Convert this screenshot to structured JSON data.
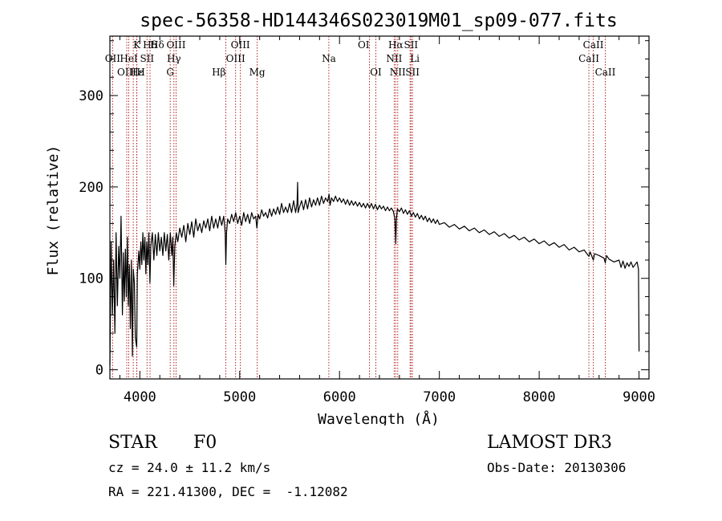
{
  "chart_data": {
    "type": "line",
    "title": "spec-56358-HD144346S023019M01_sp09-077.fits",
    "xlabel": "Wavelength (Å)",
    "ylabel": "Flux (relative)",
    "xlim": [
      3700,
      9100
    ],
    "ylim": [
      -10,
      365
    ],
    "xticks": [
      4000,
      5000,
      6000,
      7000,
      8000,
      9000
    ],
    "xtick_labels": [
      "4000",
      "5000",
      "6000",
      "7000",
      "8000",
      "9000"
    ],
    "yticks": [
      0,
      100,
      200,
      300
    ],
    "ytick_labels": [
      "0",
      "100",
      "200",
      "300"
    ],
    "x_minor_step": 200,
    "y_minor_step": 20,
    "line_color": "#000000",
    "marker_color": "#b22222",
    "series": [
      {
        "name": "spectrum",
        "points": [
          [
            3700,
            5
          ],
          [
            3712,
            140
          ],
          [
            3725,
            60
          ],
          [
            3738,
            120
          ],
          [
            3750,
            40
          ],
          [
            3762,
            150
          ],
          [
            3775,
            70
          ],
          [
            3788,
            135
          ],
          [
            3800,
            100
          ],
          [
            3812,
            168
          ],
          [
            3825,
            60
          ],
          [
            3835,
            128
          ],
          [
            3845,
            75
          ],
          [
            3855,
            132
          ],
          [
            3865,
            80
          ],
          [
            3875,
            145
          ],
          [
            3885,
            70
          ],
          [
            3895,
            115
          ],
          [
            3905,
            45
          ],
          [
            3915,
            120
          ],
          [
            3925,
            15
          ],
          [
            3935,
            110
          ],
          [
            3945,
            95
          ],
          [
            3955,
            35
          ],
          [
            3968,
            25
          ],
          [
            3975,
            105
          ],
          [
            3990,
            130
          ],
          [
            4000,
            110
          ],
          [
            4010,
            140
          ],
          [
            4020,
            115
          ],
          [
            4030,
            150
          ],
          [
            4040,
            120
          ],
          [
            4050,
            145
          ],
          [
            4060,
            105
          ],
          [
            4070,
            140
          ],
          [
            4080,
            115
          ],
          [
            4090,
            150
          ],
          [
            4101,
            95
          ],
          [
            4110,
            135
          ],
          [
            4125,
            150
          ],
          [
            4140,
            120
          ],
          [
            4155,
            148
          ],
          [
            4170,
            125
          ],
          [
            4185,
            150
          ],
          [
            4200,
            130
          ],
          [
            4215,
            145
          ],
          [
            4230,
            125
          ],
          [
            4245,
            150
          ],
          [
            4260,
            130
          ],
          [
            4275,
            148
          ],
          [
            4290,
            120
          ],
          [
            4305,
            150
          ],
          [
            4320,
            125
          ],
          [
            4330,
            145
          ],
          [
            4340,
            92
          ],
          [
            4350,
            135
          ],
          [
            4365,
            150
          ],
          [
            4380,
            140
          ],
          [
            4400,
            155
          ],
          [
            4420,
            145
          ],
          [
            4440,
            158
          ],
          [
            4460,
            140
          ],
          [
            4480,
            160
          ],
          [
            4500,
            148
          ],
          [
            4520,
            162
          ],
          [
            4540,
            145
          ],
          [
            4560,
            165
          ],
          [
            4580,
            152
          ],
          [
            4600,
            160
          ],
          [
            4620,
            150
          ],
          [
            4640,
            163
          ],
          [
            4660,
            155
          ],
          [
            4680,
            165
          ],
          [
            4700,
            152
          ],
          [
            4720,
            168
          ],
          [
            4740,
            155
          ],
          [
            4760,
            165
          ],
          [
            4780,
            155
          ],
          [
            4800,
            168
          ],
          [
            4820,
            158
          ],
          [
            4840,
            168
          ],
          [
            4855,
            150
          ],
          [
            4861,
            115
          ],
          [
            4868,
            150
          ],
          [
            4880,
            165
          ],
          [
            4900,
            160
          ],
          [
            4920,
            170
          ],
          [
            4940,
            162
          ],
          [
            4960,
            172
          ],
          [
            4980,
            160
          ],
          [
            5000,
            168
          ],
          [
            5020,
            158
          ],
          [
            5040,
            172
          ],
          [
            5060,
            162
          ],
          [
            5080,
            170
          ],
          [
            5100,
            160
          ],
          [
            5120,
            172
          ],
          [
            5140,
            165
          ],
          [
            5160,
            168
          ],
          [
            5172,
            155
          ],
          [
            5185,
            170
          ],
          [
            5200,
            165
          ],
          [
            5220,
            175
          ],
          [
            5240,
            168
          ],
          [
            5260,
            172
          ],
          [
            5280,
            166
          ],
          [
            5300,
            176
          ],
          [
            5320,
            168
          ],
          [
            5340,
            176
          ],
          [
            5360,
            170
          ],
          [
            5380,
            178
          ],
          [
            5400,
            170
          ],
          [
            5420,
            182
          ],
          [
            5440,
            172
          ],
          [
            5460,
            178
          ],
          [
            5480,
            172
          ],
          [
            5500,
            182
          ],
          [
            5520,
            172
          ],
          [
            5540,
            185
          ],
          [
            5560,
            172
          ],
          [
            5575,
            182
          ],
          [
            5580,
            205
          ],
          [
            5585,
            172
          ],
          [
            5600,
            178
          ],
          [
            5620,
            185
          ],
          [
            5640,
            175
          ],
          [
            5660,
            186
          ],
          [
            5680,
            176
          ],
          [
            5700,
            188
          ],
          [
            5720,
            178
          ],
          [
            5740,
            186
          ],
          [
            5760,
            180
          ],
          [
            5780,
            188
          ],
          [
            5800,
            180
          ],
          [
            5820,
            190
          ],
          [
            5840,
            182
          ],
          [
            5860,
            188
          ],
          [
            5880,
            184
          ],
          [
            5895,
            192
          ],
          [
            5905,
            180
          ],
          [
            5920,
            188
          ],
          [
            5940,
            184
          ],
          [
            5960,
            190
          ],
          [
            5980,
            184
          ],
          [
            6000,
            188
          ],
          [
            6020,
            183
          ],
          [
            6040,
            187
          ],
          [
            6060,
            181
          ],
          [
            6080,
            186
          ],
          [
            6100,
            180
          ],
          [
            6120,
            185
          ],
          [
            6140,
            180
          ],
          [
            6160,
            184
          ],
          [
            6180,
            179
          ],
          [
            6200,
            183
          ],
          [
            6220,
            178
          ],
          [
            6240,
            182
          ],
          [
            6260,
            177
          ],
          [
            6280,
            182
          ],
          [
            6300,
            177
          ],
          [
            6320,
            182
          ],
          [
            6340,
            176
          ],
          [
            6360,
            181
          ],
          [
            6380,
            175
          ],
          [
            6400,
            180
          ],
          [
            6420,
            176
          ],
          [
            6440,
            179
          ],
          [
            6460,
            174
          ],
          [
            6480,
            178
          ],
          [
            6500,
            174
          ],
          [
            6520,
            177
          ],
          [
            6540,
            173
          ],
          [
            6555,
            165
          ],
          [
            6563,
            138
          ],
          [
            6570,
            165
          ],
          [
            6580,
            176
          ],
          [
            6600,
            173
          ],
          [
            6620,
            177
          ],
          [
            6640,
            171
          ],
          [
            6660,
            175
          ],
          [
            6680,
            170
          ],
          [
            6700,
            174
          ],
          [
            6720,
            168
          ],
          [
            6740,
            172
          ],
          [
            6760,
            167
          ],
          [
            6780,
            171
          ],
          [
            6800,
            165
          ],
          [
            6820,
            169
          ],
          [
            6840,
            164
          ],
          [
            6860,
            168
          ],
          [
            6880,
            162
          ],
          [
            6900,
            166
          ],
          [
            6920,
            161
          ],
          [
            6940,
            165
          ],
          [
            6960,
            160
          ],
          [
            6980,
            164
          ],
          [
            7000,
            159
          ],
          [
            7050,
            161
          ],
          [
            7100,
            156
          ],
          [
            7150,
            159
          ],
          [
            7200,
            154
          ],
          [
            7250,
            157
          ],
          [
            7300,
            152
          ],
          [
            7350,
            155
          ],
          [
            7400,
            150
          ],
          [
            7450,
            153
          ],
          [
            7500,
            148
          ],
          [
            7550,
            151
          ],
          [
            7600,
            146
          ],
          [
            7650,
            149
          ],
          [
            7700,
            144
          ],
          [
            7750,
            147
          ],
          [
            7800,
            142
          ],
          [
            7850,
            145
          ],
          [
            7900,
            140
          ],
          [
            7950,
            143
          ],
          [
            8000,
            138
          ],
          [
            8050,
            141
          ],
          [
            8100,
            136
          ],
          [
            8150,
            139
          ],
          [
            8200,
            134
          ],
          [
            8250,
            137
          ],
          [
            8300,
            131
          ],
          [
            8350,
            134
          ],
          [
            8400,
            129
          ],
          [
            8450,
            131
          ],
          [
            8498,
            124
          ],
          [
            8510,
            129
          ],
          [
            8542,
            120
          ],
          [
            8555,
            127
          ],
          [
            8600,
            125
          ],
          [
            8650,
            122
          ],
          [
            8662,
            117
          ],
          [
            8675,
            125
          ],
          [
            8700,
            121
          ],
          [
            8750,
            118
          ],
          [
            8800,
            120
          ],
          [
            8820,
            112
          ],
          [
            8840,
            119
          ],
          [
            8860,
            111
          ],
          [
            8880,
            117
          ],
          [
            8900,
            113
          ],
          [
            8920,
            118
          ],
          [
            8940,
            112
          ],
          [
            8960,
            115
          ],
          [
            8980,
            118
          ],
          [
            8995,
            110
          ],
          [
            9000,
            20
          ]
        ]
      }
    ],
    "line_markers": [
      {
        "label": "Hδ",
        "wavelength": 4102,
        "row": 0,
        "align": "left"
      },
      {
        "label": "K",
        "wavelength": 3934,
        "row": 0,
        "align": "left"
      },
      {
        "label": "Hδ",
        "wavelength": 4102,
        "row": 0,
        "align": "center"
      },
      {
        "label": "OIII",
        "wavelength": 4363,
        "row": 0,
        "align": "center"
      },
      {
        "label": "OIII",
        "wavelength": 5007,
        "row": 0,
        "align": "center"
      },
      {
        "label": "OI",
        "wavelength": 6300,
        "row": 0,
        "align": "right"
      },
      {
        "label": "Hα",
        "wavelength": 6563,
        "row": 0,
        "align": "center"
      },
      {
        "label": "SII",
        "wavelength": 6716,
        "row": 0,
        "align": "center"
      },
      {
        "label": "CaII",
        "wavelength": 8542,
        "row": 0,
        "align": "center"
      },
      {
        "label": "OII",
        "wavelength": 3727,
        "row": 1,
        "align": "center"
      },
      {
        "label": "HeI",
        "wavelength": 3889,
        "row": 1,
        "align": "center"
      },
      {
        "label": "SII",
        "wavelength": 4072,
        "row": 1,
        "align": "center"
      },
      {
        "label": "Hγ",
        "wavelength": 4341,
        "row": 1,
        "align": "center"
      },
      {
        "label": "OIII",
        "wavelength": 4959,
        "row": 1,
        "align": "center"
      },
      {
        "label": "Na",
        "wavelength": 5893,
        "row": 1,
        "align": "center"
      },
      {
        "label": "NII",
        "wavelength": 6548,
        "row": 1,
        "align": "center"
      },
      {
        "label": "Li",
        "wavelength": 6707,
        "row": 1,
        "align": "left"
      },
      {
        "label": "CaII",
        "wavelength": 8498,
        "row": 1,
        "align": "center"
      },
      {
        "label": "OIII",
        "wavelength": 3869,
        "row": 2,
        "align": "center"
      },
      {
        "label": "Hε",
        "wavelength": 3970,
        "row": 2,
        "align": "center"
      },
      {
        "label": "H",
        "wavelength": 3968,
        "row": 2,
        "align": "left"
      },
      {
        "label": "G",
        "wavelength": 4304,
        "row": 2,
        "align": "center"
      },
      {
        "label": "Hβ",
        "wavelength": 4861,
        "row": 2,
        "align": "right"
      },
      {
        "label": "Mg",
        "wavelength": 5175,
        "row": 2,
        "align": "center"
      },
      {
        "label": "OI",
        "wavelength": 6364,
        "row": 2,
        "align": "center"
      },
      {
        "label": "NII",
        "wavelength": 6583,
        "row": 2,
        "align": "center"
      },
      {
        "label": "SII",
        "wavelength": 6731,
        "row": 2,
        "align": "center"
      },
      {
        "label": "CaII",
        "wavelength": 8662,
        "row": 2,
        "align": "center"
      }
    ]
  },
  "info": {
    "object_class": "STAR",
    "subclass": "F0",
    "survey": "LAMOST DR3",
    "redshift_line": "cz = 24.0 ± 11.2 km/s",
    "obs_date_line": "Obs-Date: 20130306",
    "coords_line": "RA = 221.41300, DEC =  -1.12082"
  }
}
